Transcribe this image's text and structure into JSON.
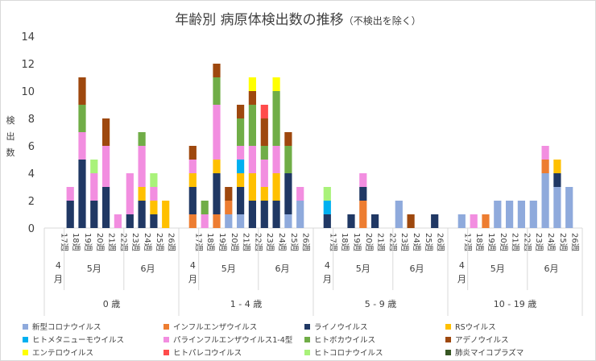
{
  "title": "年齢別 病原体検出数の推移",
  "subtitle": "（不検出を除く）",
  "chart_data": {
    "type": "bar",
    "stacked": true,
    "ylabel": "検出数",
    "ylim": [
      0,
      14
    ],
    "yticks": [
      0,
      2,
      4,
      6,
      8,
      10,
      12,
      14
    ],
    "grid": false,
    "legend_position": "bottom",
    "age_groups": [
      {
        "label": "0 歳",
        "months": [
          {
            "label": "4\n月",
            "weeks": [
              "17週"
            ]
          },
          {
            "label": "5月",
            "weeks": [
              "18週",
              "19週",
              "20週",
              "21週",
              "22週"
            ]
          },
          {
            "label": "6月",
            "weeks": [
              "23週",
              "24週",
              "25週",
              "26週"
            ]
          }
        ],
        "bars": [
          {},
          {
            "rhino": 2,
            "parainfluenza": 1
          },
          {
            "rhino": 5,
            "parainfluenza": 2,
            "bocavirus": 2,
            "adenovirus": 2
          },
          {
            "rhino": 2,
            "parainfluenza": 2,
            "human_corona": 1
          },
          {
            "rhino": 3,
            "parainfluenza": 3,
            "adenovirus": 2
          },
          {
            "parainfluenza": 1
          },
          {
            "rhino": 1,
            "parainfluenza": 3
          },
          {
            "rhino": 2,
            "rsv": 1,
            "parainfluenza": 3,
            "bocavirus": 1
          },
          {
            "rhino": 1,
            "rsv": 1,
            "parainfluenza": 1,
            "human_corona": 1
          },
          {
            "rsv": 2
          }
        ]
      },
      {
        "label": "1 - 4 歳",
        "months": [
          {
            "label": "4\n月",
            "weeks": [
              "17週"
            ]
          },
          {
            "label": "5月",
            "weeks": [
              "18週",
              "19週",
              "20週",
              "21週",
              "22週"
            ]
          },
          {
            "label": "6月",
            "weeks": [
              "23週",
              "24週",
              "25週",
              "26週"
            ]
          }
        ],
        "bars": [
          {
            "influenza": 1,
            "rhino": 2,
            "rsv": 1,
            "parainfluenza": 1,
            "adenovirus": 1
          },
          {
            "parainfluenza": 1,
            "bocavirus": 1
          },
          {
            "influenza": 1,
            "rhino": 3,
            "rsv": 1,
            "parainfluenza": 4,
            "bocavirus": 2,
            "adenovirus": 1
          },
          {
            "new_corona": 1,
            "influenza": 1,
            "adenovirus": 1
          },
          {
            "new_corona": 1,
            "rhino": 2,
            "rsv": 1,
            "metapneumo": 1,
            "parainfluenza": 1,
            "bocavirus": 2,
            "adenovirus": 1
          },
          {
            "rhino": 2,
            "rsv": 2,
            "parainfluenza": 2,
            "bocavirus": 3,
            "adenovirus": 1,
            "entero": 1
          },
          {
            "rhino": 2,
            "rsv": 1,
            "parainfluenza": 2,
            "bocavirus": 1,
            "adenovirus": 2,
            "parecho": 1
          },
          {
            "rhino": 2,
            "rsv": 2,
            "parainfluenza": 2,
            "bocavirus": 4,
            "entero": 1
          },
          {
            "new_corona": 1,
            "rhino": 3,
            "bocavirus": 2,
            "adenovirus": 1
          },
          {
            "new_corona": 2,
            "parainfluenza": 1
          }
        ]
      },
      {
        "label": "5 - 9 歳",
        "months": [
          {
            "label": "4\n月",
            "weeks": [
              "17週"
            ]
          },
          {
            "label": "5月",
            "weeks": [
              "18週",
              "19週",
              "20週",
              "21週",
              "22週"
            ]
          },
          {
            "label": "6月",
            "weeks": [
              "23週",
              "24週",
              "25週",
              "26週"
            ]
          }
        ],
        "bars": [
          {
            "rhino": 1,
            "metapneumo": 1,
            "human_corona": 1
          },
          {},
          {
            "rhino": 1
          },
          {
            "influenza": 2,
            "rhino": 1,
            "parainfluenza": 1
          },
          {
            "rhino": 1
          },
          {},
          {
            "new_corona": 2
          },
          {
            "adenovirus": 1
          },
          {},
          {
            "rhino": 1
          }
        ]
      },
      {
        "label": "10 - 19 歳",
        "months": [
          {
            "label": "4\n月",
            "weeks": [
              "17週"
            ]
          },
          {
            "label": "5月",
            "weeks": [
              "18週",
              "19週",
              "20週",
              "21週",
              "22週"
            ]
          },
          {
            "label": "6月",
            "weeks": [
              "23週",
              "24週",
              "25週",
              "26週"
            ]
          }
        ],
        "bars": [
          {
            "new_corona": 1
          },
          {
            "parainfluenza": 1
          },
          {
            "influenza": 1
          },
          {
            "new_corona": 2
          },
          {
            "new_corona": 2
          },
          {
            "new_corona": 2
          },
          {
            "new_corona": 2
          },
          {
            "new_corona": 4,
            "influenza": 1,
            "parainfluenza": 1
          },
          {
            "new_corona": 3,
            "rhino": 1,
            "rsv": 1
          },
          {
            "new_corona": 3
          }
        ]
      }
    ],
    "series": [
      {
        "key": "new_corona",
        "name": "新型コロナウイルス",
        "color": "#8faadc"
      },
      {
        "key": "influenza",
        "name": "インフルエンザウイルス",
        "color": "#ed7d31"
      },
      {
        "key": "rhino",
        "name": "ライノウイルス",
        "color": "#203864"
      },
      {
        "key": "rsv",
        "name": "RSウイルス",
        "color": "#ffc000"
      },
      {
        "key": "metapneumo",
        "name": "ヒトメタニューモウイルス",
        "color": "#00b0f0"
      },
      {
        "key": "parainfluenza",
        "name": "パラインフルエンザウイルス1-4型",
        "color": "#f28ee0"
      },
      {
        "key": "bocavirus",
        "name": "ヒトボカウイルス",
        "color": "#70ad47"
      },
      {
        "key": "adenovirus",
        "name": "アデノウイルス",
        "color": "#9e480e"
      },
      {
        "key": "entero",
        "name": "エンテロウイルス",
        "color": "#ffff00"
      },
      {
        "key": "parecho",
        "name": "ヒトパレコウイルス",
        "color": "#ff4b4b"
      },
      {
        "key": "human_corona",
        "name": "ヒトコロナウイルス",
        "color": "#a9f27a"
      },
      {
        "key": "mycoplasma",
        "name": "肺炎マイコプラズマ",
        "color": "#375623"
      }
    ]
  }
}
